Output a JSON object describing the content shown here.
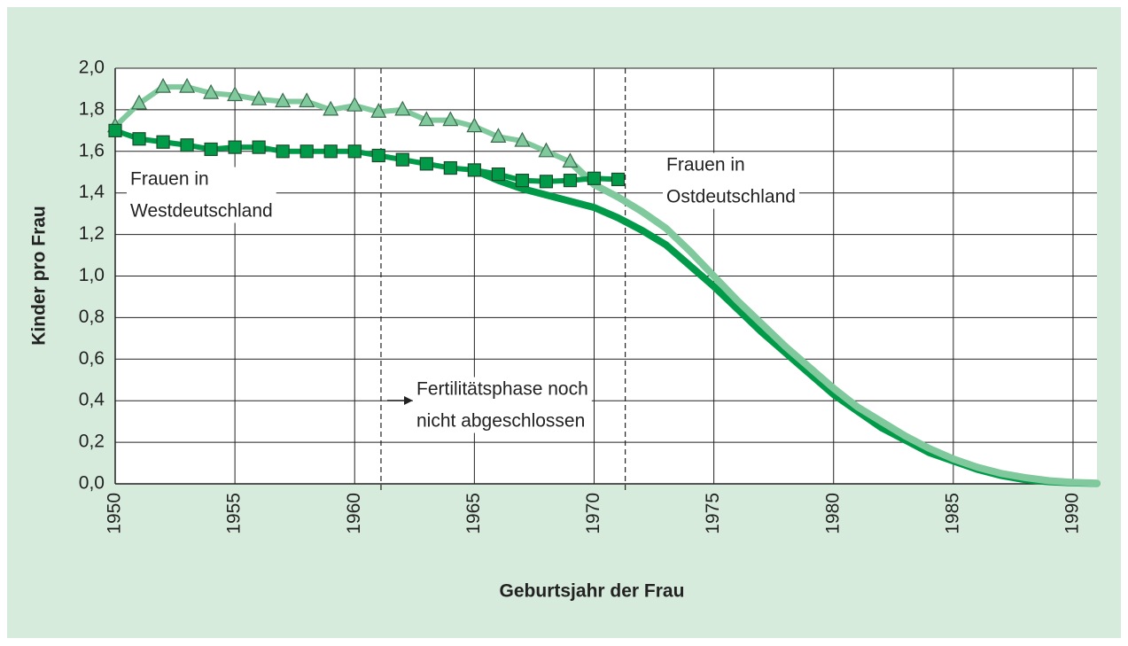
{
  "chart_data": {
    "type": "line",
    "xlabel": "Geburtsjahr der Frau",
    "ylabel": "Kinder pro Frau",
    "x": [
      1950,
      1951,
      1952,
      1953,
      1954,
      1955,
      1956,
      1957,
      1958,
      1959,
      1960,
      1961,
      1962,
      1963,
      1964,
      1965,
      1966,
      1967,
      1968,
      1969,
      1970,
      1971,
      1972,
      1973,
      1974,
      1975,
      1976,
      1977,
      1978,
      1979,
      1980,
      1981,
      1982,
      1983,
      1984,
      1985,
      1986,
      1987,
      1988,
      1989,
      1990,
      1991
    ],
    "xlim": [
      1950,
      1991
    ],
    "xticks": [
      1950,
      1955,
      1960,
      1965,
      1970,
      1975,
      1980,
      1985,
      1990
    ],
    "ylim": [
      0,
      2
    ],
    "yticks": [
      {
        "value": 0,
        "label": "0,0"
      },
      {
        "value": 0.2,
        "label": "0,2"
      },
      {
        "value": 0.4,
        "label": "0,4"
      },
      {
        "value": 0.6,
        "label": "0,6"
      },
      {
        "value": 0.8,
        "label": "0,8"
      },
      {
        "value": 1,
        "label": "1,0"
      },
      {
        "value": 1.2,
        "label": "1,2"
      },
      {
        "value": 1.4,
        "label": "1,4"
      },
      {
        "value": 1.6,
        "label": "1,6"
      },
      {
        "value": 1.8,
        "label": "1,8"
      },
      {
        "value": 2,
        "label": "2,0"
      }
    ],
    "grid": true,
    "series": [
      {
        "color": "#009a48",
        "marker": "none",
        "values": [
          null,
          null,
          null,
          null,
          null,
          null,
          null,
          null,
          null,
          null,
          null,
          null,
          null,
          null,
          null,
          1.51,
          1.46,
          1.42,
          1.39,
          1.36,
          1.33,
          1.28,
          1.22,
          1.15,
          1.05,
          0.95,
          0.84,
          0.73,
          0.63,
          0.53,
          0.43,
          0.35,
          0.27,
          0.21,
          0.15,
          0.11,
          0.07,
          0.04,
          0.02,
          0.01,
          0.005,
          0.002
        ]
      },
      {
        "color": "#7fc99c",
        "marker": "none",
        "values": [
          null,
          null,
          null,
          null,
          null,
          null,
          null,
          null,
          null,
          null,
          null,
          null,
          null,
          null,
          null,
          null,
          null,
          null,
          null,
          1.55,
          1.44,
          1.38,
          1.31,
          1.23,
          1.12,
          1.0,
          0.88,
          0.77,
          0.66,
          0.56,
          0.46,
          0.37,
          0.3,
          0.23,
          0.17,
          0.12,
          0.08,
          0.05,
          0.03,
          0.015,
          0.007,
          0.003
        ]
      },
      {
        "color": "#7fc99c",
        "marker": "triangle",
        "values": [
          1.72,
          1.83,
          1.91,
          1.91,
          1.88,
          1.87,
          1.85,
          1.84,
          1.84,
          1.8,
          1.82,
          1.79,
          1.8,
          1.75,
          1.75,
          1.72,
          1.67,
          1.65,
          1.6,
          1.55,
          null,
          null,
          null,
          null,
          null,
          null,
          null,
          null,
          null,
          null,
          null,
          null,
          null,
          null,
          null,
          null,
          null,
          null,
          null,
          null,
          null,
          null
        ]
      },
      {
        "color": "#009a48",
        "marker": "square",
        "values": [
          1.7,
          1.66,
          1.645,
          1.63,
          1.61,
          1.62,
          1.62,
          1.6,
          1.6,
          1.6,
          1.6,
          1.58,
          1.56,
          1.54,
          1.52,
          1.51,
          1.49,
          1.46,
          1.455,
          1.46,
          1.47,
          1.465,
          null,
          null,
          null,
          null,
          null,
          null,
          null,
          null,
          null,
          null,
          null,
          null,
          null,
          null,
          null,
          null,
          null,
          null,
          null,
          null
        ]
      }
    ],
    "dashed_x": [
      1961.1,
      1971.3
    ],
    "annotations": [
      {
        "lines": [
          "Frauen in",
          "Westdeutschland"
        ]
      },
      {
        "lines": [
          "Frauen in",
          "Ostdeutschland"
        ]
      },
      {
        "lines": [
          "Fertilitätsphase noch",
          "nicht abgeschlossen"
        ]
      }
    ]
  }
}
